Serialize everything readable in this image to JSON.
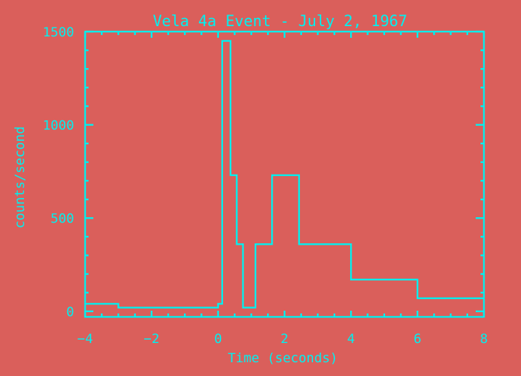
{
  "chart_data": {
    "type": "line",
    "step": true,
    "title": "Vela 4a Event - July 2, 1967",
    "xlabel": "Time (seconds)",
    "ylabel": "counts/second",
    "xlim": [
      -4,
      8
    ],
    "ylim": [
      -30,
      1500
    ],
    "xticks": [
      -4,
      -2,
      0,
      2,
      4,
      6,
      8
    ],
    "xtick_labels": [
      "−4",
      "−2",
      "0",
      "2",
      "4",
      "6",
      "8"
    ],
    "yticks": [
      0,
      500,
      1000,
      1500
    ],
    "ytick_labels": [
      "0",
      "500",
      "1000",
      "1500"
    ],
    "grid": false,
    "color": "#00f0f0",
    "background": "#da5f5b",
    "series": [
      {
        "bin_edges": [
          -4,
          -3,
          -1,
          0,
          0.125,
          0.375,
          0.5625,
          0.75,
          1.125,
          1.625,
          2.4375,
          4,
          6,
          8
        ],
        "values": [
          40,
          20,
          20,
          40,
          1450,
          730,
          360,
          20,
          360,
          730,
          360,
          170,
          70
        ]
      }
    ]
  }
}
